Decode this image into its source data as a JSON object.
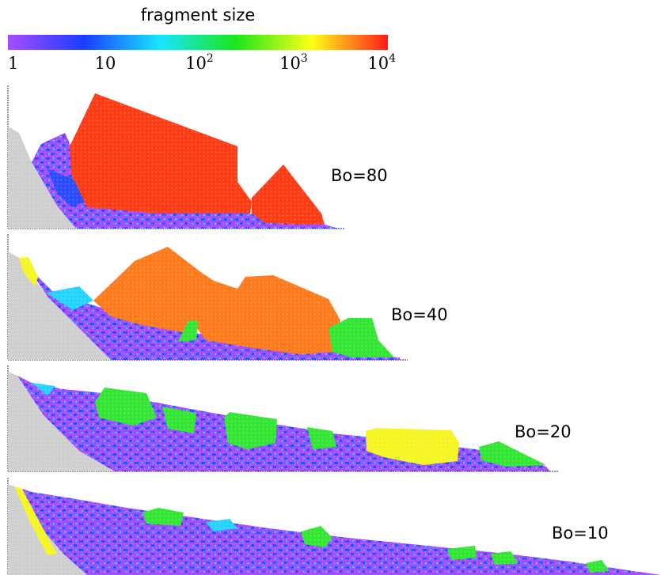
{
  "colorbar": {
    "title": "fragment size",
    "ticks": [
      {
        "base": "1",
        "exp": ""
      },
      {
        "base": "10",
        "exp": ""
      },
      {
        "base": "10",
        "exp": "2"
      },
      {
        "base": "10",
        "exp": "3"
      },
      {
        "base": "10",
        "exp": "4"
      }
    ],
    "colors": [
      "#a64dff",
      "#1a3cff",
      "#19e6ff",
      "#1ae61a",
      "#ffff19",
      "#ff1a1a"
    ]
  },
  "panels": [
    {
      "label": "Bo=80"
    },
    {
      "label": "Bo=40"
    },
    {
      "label": "Bo=20"
    },
    {
      "label": "Bo=10"
    }
  ],
  "palette": {
    "wall": "#cfcfcf",
    "purple": "#a24dff",
    "blue": "#2a4bff",
    "cyan": "#22d4ff",
    "green": "#33e633",
    "yellow": "#f5f521",
    "orange": "#ff7a1a",
    "red": "#ff3b14"
  }
}
